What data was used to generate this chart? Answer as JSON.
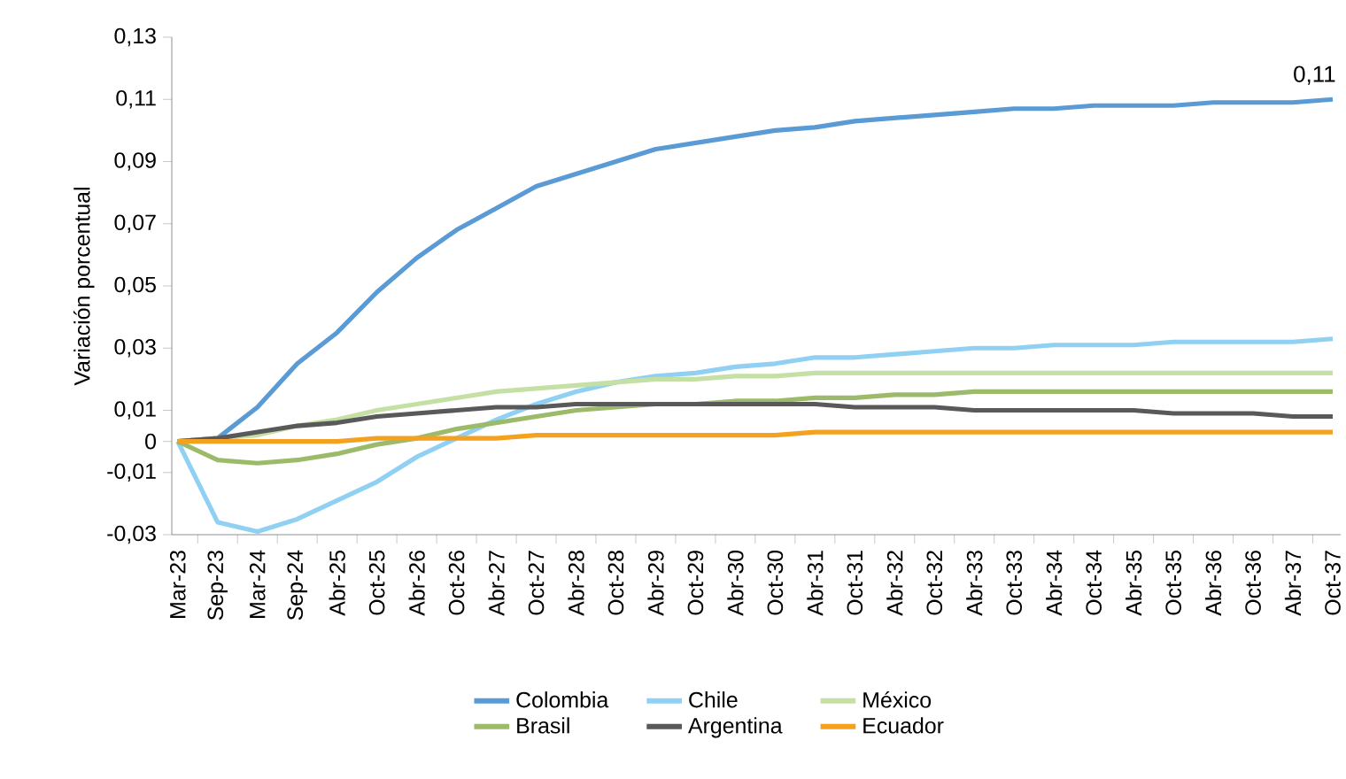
{
  "chart_data": {
    "type": "line",
    "ylabel": "Variación porcentual",
    "categories": [
      "Mar-23",
      "Sep-23",
      "Mar-24",
      "Sep-24",
      "Abr-25",
      "Oct-25",
      "Abr-26",
      "Oct-26",
      "Abr-27",
      "Oct-27",
      "Abr-28",
      "Oct-28",
      "Abr-29",
      "Oct-29",
      "Abr-30",
      "Oct-30",
      "Abr-31",
      "Oct-31",
      "Abr-32",
      "Oct-32",
      "Abr-33",
      "Oct-33",
      "Abr-34",
      "Oct-34",
      "Abr-35",
      "Oct-35",
      "Abr-36",
      "Oct-36",
      "Abr-37",
      "Oct-37"
    ],
    "series": [
      {
        "name": "Colombia",
        "color": "#5b9bd5",
        "values": [
          0,
          0.001,
          0.011,
          0.025,
          0.035,
          0.048,
          0.059,
          0.068,
          0.075,
          0.082,
          0.086,
          0.09,
          0.094,
          0.096,
          0.098,
          0.1,
          0.101,
          0.103,
          0.104,
          0.105,
          0.106,
          0.107,
          0.107,
          0.108,
          0.108,
          0.108,
          0.109,
          0.109,
          0.109,
          0.11
        ]
      },
      {
        "name": "Chile",
        "color": "#8fd0f3",
        "values": [
          0,
          -0.026,
          -0.029,
          -0.025,
          -0.019,
          -0.013,
          -0.005,
          0.001,
          0.007,
          0.012,
          0.016,
          0.019,
          0.021,
          0.022,
          0.024,
          0.025,
          0.027,
          0.027,
          0.028,
          0.029,
          0.03,
          0.03,
          0.031,
          0.031,
          0.031,
          0.032,
          0.032,
          0.032,
          0.032,
          0.033
        ]
      },
      {
        "name": "México",
        "color": "#c5e0a5",
        "values": [
          0,
          0.001,
          0.002,
          0.005,
          0.007,
          0.01,
          0.012,
          0.014,
          0.016,
          0.017,
          0.018,
          0.019,
          0.02,
          0.02,
          0.021,
          0.021,
          0.022,
          0.022,
          0.022,
          0.022,
          0.022,
          0.022,
          0.022,
          0.022,
          0.022,
          0.022,
          0.022,
          0.022,
          0.022,
          0.022
        ]
      },
      {
        "name": "Brasil",
        "color": "#9bbb6b",
        "values": [
          0,
          -0.006,
          -0.007,
          -0.006,
          -0.004,
          -0.001,
          0.001,
          0.004,
          0.006,
          0.008,
          0.01,
          0.011,
          0.012,
          0.012,
          0.013,
          0.013,
          0.014,
          0.014,
          0.015,
          0.015,
          0.016,
          0.016,
          0.016,
          0.016,
          0.016,
          0.016,
          0.016,
          0.016,
          0.016,
          0.016
        ]
      },
      {
        "name": "Argentina",
        "color": "#595959",
        "values": [
          0,
          0.001,
          0.003,
          0.005,
          0.006,
          0.008,
          0.009,
          0.01,
          0.011,
          0.011,
          0.012,
          0.012,
          0.012,
          0.012,
          0.012,
          0.012,
          0.012,
          0.011,
          0.011,
          0.011,
          0.01,
          0.01,
          0.01,
          0.01,
          0.01,
          0.009,
          0.009,
          0.009,
          0.008,
          0.008
        ]
      },
      {
        "name": "Ecuador",
        "color": "#f4a11f",
        "values": [
          0,
          0,
          0,
          0,
          0,
          0.001,
          0.001,
          0.001,
          0.001,
          0.002,
          0.002,
          0.002,
          0.002,
          0.002,
          0.002,
          0.002,
          0.003,
          0.003,
          0.003,
          0.003,
          0.003,
          0.003,
          0.003,
          0.003,
          0.003,
          0.003,
          0.003,
          0.003,
          0.003,
          0.003
        ]
      }
    ],
    "ylim": [
      -0.03,
      0.13
    ],
    "yticks": [
      {
        "value": -0.03,
        "label": "-0,03"
      },
      {
        "value": -0.01,
        "label": "-0,01"
      },
      {
        "value": 0,
        "label": "0"
      },
      {
        "value": 0.01,
        "label": "0,01"
      },
      {
        "value": 0.03,
        "label": "0,03"
      },
      {
        "value": 0.05,
        "label": "0,05"
      },
      {
        "value": 0.07,
        "label": "0,07"
      },
      {
        "value": 0.09,
        "label": "0,09"
      },
      {
        "value": 0.11,
        "label": "0,11"
      },
      {
        "value": 0.13,
        "label": "0,13"
      }
    ],
    "annotations": [
      {
        "text": "0,11",
        "x": "Oct-37",
        "y": 0.11
      }
    ],
    "legend": "bottom",
    "line_style": "solid",
    "marker": "none"
  }
}
